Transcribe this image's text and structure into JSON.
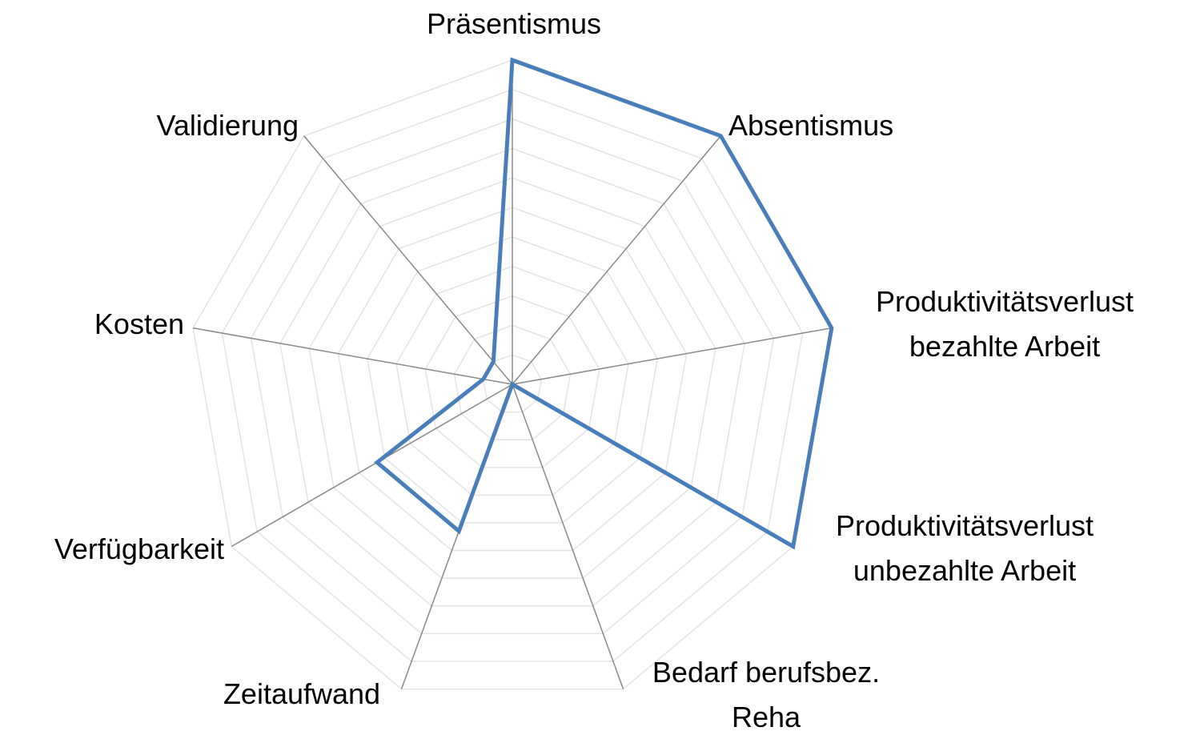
{
  "chart_data": {
    "type": "radar",
    "categories": [
      "Präsentismus",
      "Absentismus",
      "Produktivitätsverlust bezahlte Arbeit",
      "Produktivitätsverlust unbezahlte Arbeit",
      "Bedarf berufsbez. Reha",
      "Zeitaufwand",
      "Verfügbarkeit",
      "Kosten",
      "Validierung"
    ],
    "values": [
      11,
      11,
      11,
      11,
      0,
      5.3,
      5.3,
      1,
      1
    ],
    "color": "#4a7ebb",
    "ylim": [
      0,
      11
    ],
    "yticks": [
      0,
      1,
      2,
      3,
      4,
      5,
      6,
      7,
      8,
      9,
      10,
      11
    ],
    "grid": true
  }
}
